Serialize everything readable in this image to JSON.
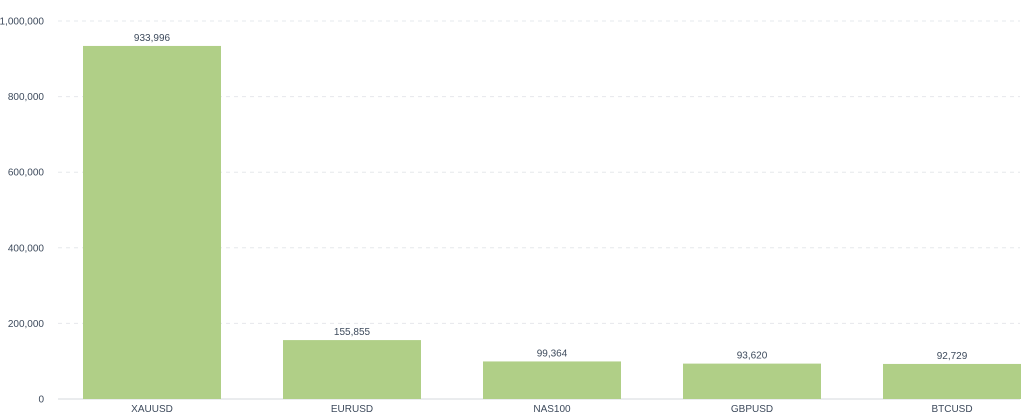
{
  "chart_data": {
    "type": "bar",
    "title": "",
    "xlabel": "",
    "ylabel": "",
    "categories": [
      "XAUUSD",
      "EURUSD",
      "NAS100",
      "GBPUSD",
      "BTCUSD"
    ],
    "values": [
      933996,
      155855,
      99364,
      93620,
      92729
    ],
    "value_labels": [
      "933,996",
      "155,855",
      "99,364",
      "93,620",
      "92,729"
    ],
    "ylim": [
      0,
      1000000
    ],
    "yticks": [
      0,
      200000,
      400000,
      600000,
      800000,
      1000000
    ],
    "ytick_labels": [
      "0",
      "200,000",
      "400,000",
      "600,000",
      "800,000",
      "1,000,000"
    ],
    "grid": true,
    "legend": "none",
    "bar_color": "#b0cf87"
  }
}
